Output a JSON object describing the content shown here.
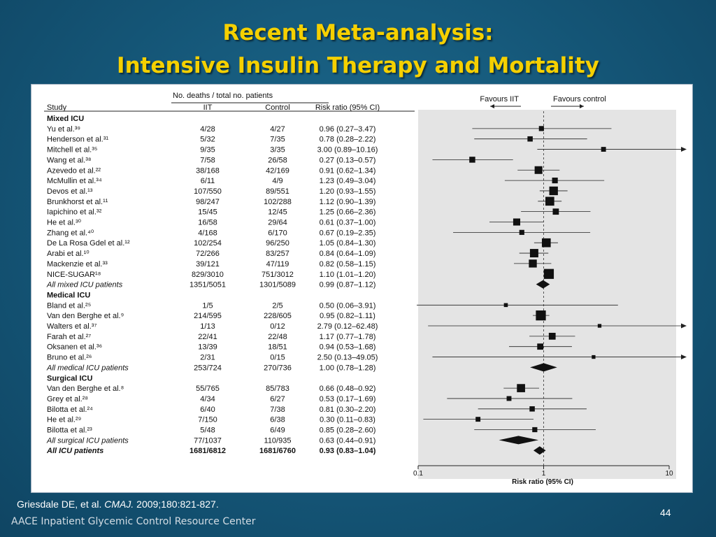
{
  "slide": {
    "title_line1": "Recent Meta-analysis:",
    "title_line2": "Intensive Insulin Therapy and Mortality",
    "citation_authors": "Griesdale DE, et al.",
    "citation_journal": "CMAJ.",
    "citation_ref": "2009;180:821-827.",
    "footer": "AACE Inpatient Glycemic Control Resource Center",
    "page_number": "44",
    "title_color": "#f5d000"
  },
  "chart_data": {
    "type": "forest",
    "headers": {
      "group": "No. deaths / total no. patients",
      "study": "Study",
      "iit": "IIT",
      "control": "Control",
      "rr": "Risk ratio (95% CI)"
    },
    "favours_left": "Favours IIT",
    "favours_right": "Favours control",
    "xlabel": "Risk ratio (95% CI)",
    "xscale": "log",
    "xlim": [
      0.1,
      10
    ],
    "xticks": [
      "0.1",
      "1",
      "10"
    ],
    "rows": [
      {
        "kind": "header",
        "study": "Mixed ICU"
      },
      {
        "kind": "study",
        "study": "Yu et al.³⁹",
        "iit": "4/28",
        "control": "4/27",
        "rr_text": "0.96 (0.27–3.47)",
        "rr": 0.96,
        "lo": 0.27,
        "hi": 3.47,
        "w": 1
      },
      {
        "kind": "study",
        "study": "Henderson et al.³¹",
        "iit": "5/32",
        "control": "7/35",
        "rr_text": "0.78 (0.28–2.22)",
        "rr": 0.78,
        "lo": 0.28,
        "hi": 2.22,
        "w": 1.1
      },
      {
        "kind": "study",
        "study": "Mitchell et al.³⁵",
        "iit": "9/35",
        "control": "3/35",
        "rr_text": "3.00 (0.89–10.16)",
        "rr": 3.0,
        "lo": 0.89,
        "hi": 10.16,
        "w": 0.9
      },
      {
        "kind": "study",
        "study": "Wang et al.³⁸",
        "iit": "7/58",
        "control": "26/58",
        "rr_text": "0.27 (0.13–0.57)",
        "rr": 0.27,
        "lo": 0.13,
        "hi": 0.57,
        "w": 1.4
      },
      {
        "kind": "study",
        "study": "Azevedo et al.²²",
        "iit": "38/168",
        "control": "42/169",
        "rr_text": "0.91 (0.62–1.34)",
        "rr": 0.91,
        "lo": 0.62,
        "hi": 1.34,
        "w": 2.2
      },
      {
        "kind": "study",
        "study": "McMullin et al.³⁴",
        "iit": "6/11",
        "control": "4/9",
        "rr_text": "1.23 (0.49–3.04)",
        "rr": 1.23,
        "lo": 0.49,
        "hi": 3.04,
        "w": 1.3
      },
      {
        "kind": "study",
        "study": "Devos et al.¹³",
        "iit": "107/550",
        "control": "89/551",
        "rr_text": "1.20 (0.93–1.55)",
        "rr": 1.2,
        "lo": 0.93,
        "hi": 1.55,
        "w": 2.6
      },
      {
        "kind": "study",
        "study": "Brunkhorst et al.¹¹",
        "iit": "98/247",
        "control": "102/288",
        "rr_text": "1.12 (0.90–1.39)",
        "rr": 1.12,
        "lo": 0.9,
        "hi": 1.39,
        "w": 2.7
      },
      {
        "kind": "study",
        "study": "Iapichino et al.³²",
        "iit": "15/45",
        "control": "12/45",
        "rr_text": "1.25 (0.66–2.36)",
        "rr": 1.25,
        "lo": 0.66,
        "hi": 2.36,
        "w": 1.5
      },
      {
        "kind": "study",
        "study": "He et al.³⁰",
        "iit": "16/58",
        "control": "29/64",
        "rr_text": "0.61 (0.37–1.00)",
        "rr": 0.61,
        "lo": 0.37,
        "hi": 1.0,
        "w": 1.9
      },
      {
        "kind": "study",
        "study": "Zhang et al.⁴⁰",
        "iit": "4/168",
        "control": "6/170",
        "rr_text": "0.67 (0.19–2.35)",
        "rr": 0.67,
        "lo": 0.19,
        "hi": 2.35,
        "w": 1
      },
      {
        "kind": "study",
        "study": "De La Rosa Gdel et al.¹²",
        "iit": "102/254",
        "control": "96/250",
        "rr_text": "1.05 (0.84–1.30)",
        "rr": 1.05,
        "lo": 0.84,
        "hi": 1.3,
        "w": 2.7
      },
      {
        "kind": "study",
        "study": "Arabi et al.¹⁰",
        "iit": "72/266",
        "control": "83/257",
        "rr_text": "0.84 (0.64–1.09)",
        "rr": 0.84,
        "lo": 0.64,
        "hi": 1.09,
        "w": 2.5
      },
      {
        "kind": "study",
        "study": "Mackenzie et al.³³",
        "iit": "39/121",
        "control": "47/119",
        "rr_text": "0.82 (0.58–1.15)",
        "rr": 0.82,
        "lo": 0.58,
        "hi": 1.15,
        "w": 2.3
      },
      {
        "kind": "study",
        "study": "NICE-SUGAR¹⁸",
        "iit": "829/3010",
        "control": "751/3012",
        "rr_text": "1.10 (1.01–1.20)",
        "rr": 1.1,
        "lo": 1.01,
        "hi": 1.2,
        "w": 3.2
      },
      {
        "kind": "pooled",
        "study": "All mixed ICU patients",
        "iit": "1351/5051",
        "control": "1301/5089",
        "rr_text": "0.99 (0.87–1.12)",
        "rr": 0.99,
        "lo": 0.87,
        "hi": 1.12
      },
      {
        "kind": "header",
        "study": "Medical ICU"
      },
      {
        "kind": "study",
        "study": "Bland et al.²⁵",
        "iit": "1/5",
        "control": "2/5",
        "rr_text": "0.50 (0.06–3.91)",
        "rr": 0.5,
        "lo": 0.06,
        "hi": 3.91,
        "w": 0.5
      },
      {
        "kind": "study",
        "study": "Van den Berghe et al.⁹",
        "iit": "214/595",
        "control": "228/605",
        "rr_text": "0.95 (0.82–1.11)",
        "rr": 0.95,
        "lo": 0.82,
        "hi": 1.11,
        "w": 3.2
      },
      {
        "kind": "study",
        "study": "Walters et al.³⁷",
        "iit": "1/13",
        "control": "0/12",
        "rr_text": "2.79 (0.12–62.48)",
        "rr": 2.79,
        "lo": 0.12,
        "hi": 62.48,
        "w": 0.4
      },
      {
        "kind": "study",
        "study": "Farah et al.²⁷",
        "iit": "22/41",
        "control": "22/48",
        "rr_text": "1.17 (0.77–1.78)",
        "rr": 1.17,
        "lo": 0.77,
        "hi": 1.78,
        "w": 1.8
      },
      {
        "kind": "study",
        "study": "Oksanen et al.³⁶",
        "iit": "13/39",
        "control": "18/51",
        "rr_text": "0.94 (0.53–1.68)",
        "rr": 0.94,
        "lo": 0.53,
        "hi": 1.68,
        "w": 1.5
      },
      {
        "kind": "study",
        "study": "Bruno et al.²⁶",
        "iit": "2/31",
        "control": "0/15",
        "rr_text": "2.50 (0.13–49.05)",
        "rr": 2.5,
        "lo": 0.13,
        "hi": 49.05,
        "w": 0.4
      },
      {
        "kind": "pooled",
        "study": "All medical ICU patients",
        "iit": "253/724",
        "control": "270/736",
        "rr_text": "1.00 (0.78–1.28)",
        "rr": 1.0,
        "lo": 0.78,
        "hi": 1.28
      },
      {
        "kind": "header",
        "study": "Surgical ICU"
      },
      {
        "kind": "study",
        "study": "Van den Berghe et al.⁸",
        "iit": "55/765",
        "control": "85/783",
        "rr_text": "0.66 (0.48–0.92)",
        "rr": 0.66,
        "lo": 0.48,
        "hi": 0.92,
        "w": 2.4
      },
      {
        "kind": "study",
        "study": "Grey et al.²⁸",
        "iit": "4/34",
        "control": "6/27",
        "rr_text": "0.53 (0.17–1.69)",
        "rr": 0.53,
        "lo": 0.17,
        "hi": 1.69,
        "w": 0.9
      },
      {
        "kind": "study",
        "study": "Bilotta et al.²⁴",
        "iit": "6/40",
        "control": "7/38",
        "rr_text": "0.81 (0.30–2.20)",
        "rr": 0.81,
        "lo": 0.3,
        "hi": 2.2,
        "w": 1.1
      },
      {
        "kind": "study",
        "study": "He et al.²⁹",
        "iit": "7/150",
        "control": "6/38",
        "rr_text": "0.30 (0.11–0.83)",
        "rr": 0.3,
        "lo": 0.11,
        "hi": 0.83,
        "w": 0.9
      },
      {
        "kind": "study",
        "study": "Bilotta et al.²³",
        "iit": "5/48",
        "control": "6/49",
        "rr_text": "0.85 (0.28–2.60)",
        "rr": 0.85,
        "lo": 0.28,
        "hi": 2.6,
        "w": 1
      },
      {
        "kind": "pooled",
        "study": "All surgical ICU patients",
        "iit": "77/1037",
        "control": "110/935",
        "rr_text": "0.63 (0.44–0.91)",
        "rr": 0.63,
        "lo": 0.44,
        "hi": 0.91
      },
      {
        "kind": "overall",
        "study": "All ICU patients",
        "iit": "1681/6812",
        "control": "1681/6760",
        "rr_text": "0.93 (0.83–1.04)",
        "rr": 0.93,
        "lo": 0.83,
        "hi": 1.04
      }
    ]
  }
}
